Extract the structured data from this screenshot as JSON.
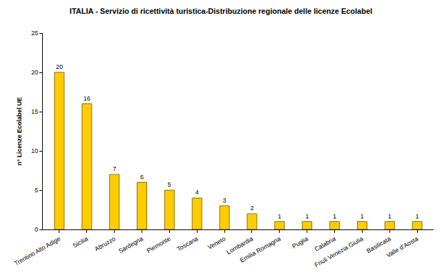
{
  "chart_data": {
    "type": "bar",
    "title": "ITALIA - Servizio di ricettività turistica-Distribuzione regionale delle licenze Ecolabel",
    "y_label": "n° Licenze Ecolabel UE",
    "categories": [
      "Trentino Alto Adige",
      "Sicilia",
      "Abruzzo",
      "Sardegna",
      "Piemonte",
      "Toscana",
      "Veneto",
      "Lombardia",
      "Emilia Romagna",
      "Puglia",
      "Calabria",
      "Friuli Venezia Giulia",
      "Basilicata",
      "Valle d'Aosta"
    ],
    "values": [
      20,
      16,
      7,
      6,
      5,
      4,
      3,
      2,
      1,
      1,
      1,
      1,
      1,
      1
    ],
    "color": "#ffcc00",
    "ylim": [
      0,
      25
    ],
    "yticks": [
      0,
      5,
      10,
      15,
      20,
      25
    ],
    "grid": false,
    "data_labels": true
  }
}
